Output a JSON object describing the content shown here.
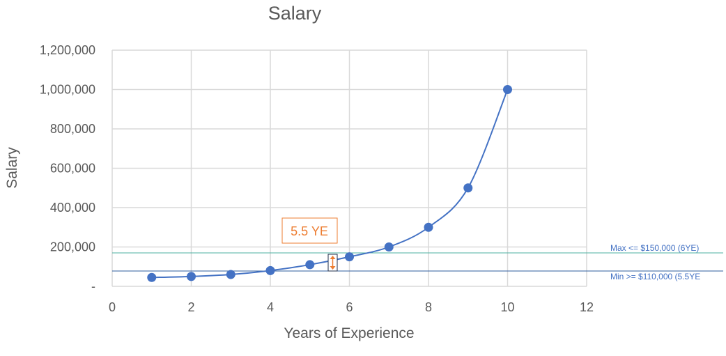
{
  "chart_data": {
    "type": "scatter",
    "title": "Salary",
    "xlabel": "Years of Experience",
    "ylabel": "Salary",
    "xlim": [
      0,
      12
    ],
    "ylim": [
      0,
      1200000
    ],
    "x_ticks": [
      0,
      2,
      4,
      6,
      8,
      10,
      12
    ],
    "x_tick_labels": [
      "0",
      "2",
      "4",
      "6",
      "8",
      "10",
      "12"
    ],
    "y_ticks": [
      0,
      200000,
      400000,
      600000,
      800000,
      1000000,
      1200000
    ],
    "y_tick_labels": [
      "-",
      "200,000",
      "400,000",
      "600,000",
      "800,000",
      "1,000,000",
      "1,200,000"
    ],
    "grid": true,
    "legend": false,
    "series": [
      {
        "x": [
          1,
          2,
          3,
          4,
          5,
          6,
          7,
          8,
          9,
          10
        ],
        "y": [
          45000,
          50000,
          60000,
          80000,
          110000,
          150000,
          200000,
          300000,
          500000,
          1000000
        ],
        "color": "#4472C4",
        "smooth_line": true
      }
    ],
    "reference_lines": [
      {
        "label": "Max <= $150,000 (6YE)",
        "color": "#4BAFA0"
      },
      {
        "label": "Min >= $110,000 (5.5YE",
        "color": "#2E5C9E"
      }
    ],
    "annotation": {
      "text": "5.5 YE",
      "color": "#ED7D31"
    }
  }
}
